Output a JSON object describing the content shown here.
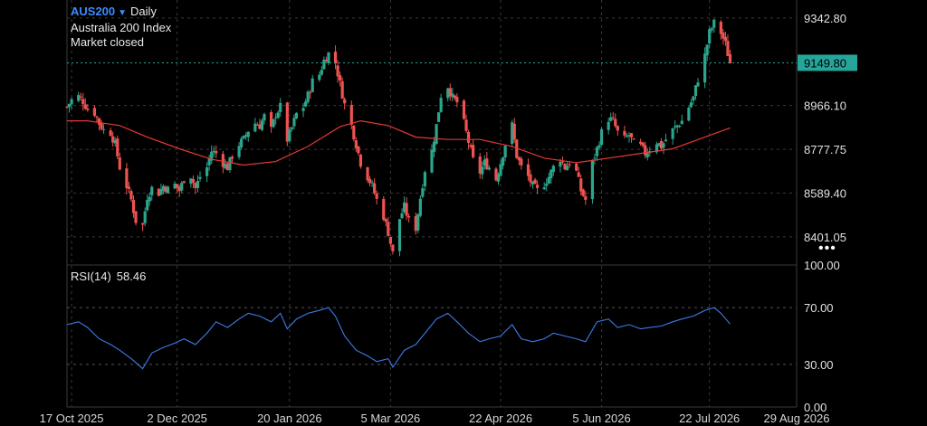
{
  "header": {
    "symbol": "AUS200",
    "timeframe": "Daily",
    "instrument_name": "Australia 200 Index",
    "market_status": "Market closed"
  },
  "more_menu_label": "•••",
  "colors": {
    "background": "#000000",
    "grid": "#3a3a3a",
    "up_candle": "#2ca58d",
    "down_candle": "#ef5350",
    "moving_average": "#e53935",
    "rsi_line": "#3d7be8",
    "price_line": "#26a69a",
    "symbol_accent": "#3d8bff"
  },
  "chart_data": [
    {
      "type": "candlestick",
      "title": "AUS200 Daily",
      "price_axis_ticks": [
        "9342.80",
        "8966.10",
        "8777.75",
        "8589.40",
        "8401.05"
      ],
      "last_price_label": "9149.80",
      "last_price": 9149.8,
      "ylim": [
        8280,
        9420
      ],
      "x_range": [
        "2025-10-15",
        "2026-08-29"
      ],
      "x_tick_labels": [
        {
          "date": "2025-10-17",
          "label": "17 Oct 2025"
        },
        {
          "date": "2025-12-02",
          "label": "2 Dec 2025"
        },
        {
          "date": "2026-01-20",
          "label": "20 Jan 2026"
        },
        {
          "date": "2026-03-05",
          "label": "5 Mar 2026"
        },
        {
          "date": "2026-04-22",
          "label": "22 Apr 2026"
        },
        {
          "date": "2026-06-05",
          "label": "5 Jun 2026"
        },
        {
          "date": "2026-07-22",
          "label": "22 Jul 2026"
        },
        {
          "date": "2026-08-29",
          "label": "29 Aug 2026"
        }
      ],
      "close_path": [
        [
          "2025-10-15",
          8960
        ],
        [
          "2025-10-17",
          8990
        ],
        [
          "2025-10-20",
          9005
        ],
        [
          "2025-10-22",
          8985
        ],
        [
          "2025-10-24",
          8950
        ],
        [
          "2025-10-27",
          8935
        ],
        [
          "2025-10-29",
          8890
        ],
        [
          "2025-10-31",
          8860
        ],
        [
          "2025-11-03",
          8850
        ],
        [
          "2025-11-05",
          8800
        ],
        [
          "2025-11-07",
          8700
        ],
        [
          "2025-11-10",
          8620
        ],
        [
          "2025-11-12",
          8560
        ],
        [
          "2025-11-14",
          8470
        ],
        [
          "2025-11-17",
          8450
        ],
        [
          "2025-11-19",
          8575
        ],
        [
          "2025-11-21",
          8610
        ],
        [
          "2025-11-24",
          8590
        ],
        [
          "2025-11-26",
          8620
        ],
        [
          "2025-11-28",
          8605
        ],
        [
          "2025-12-01",
          8625
        ],
        [
          "2025-12-03",
          8600
        ],
        [
          "2025-12-05",
          8650
        ],
        [
          "2025-12-08",
          8665
        ],
        [
          "2025-12-10",
          8610
        ],
        [
          "2025-12-12",
          8660
        ],
        [
          "2025-12-15",
          8700
        ],
        [
          "2025-12-17",
          8770
        ],
        [
          "2025-12-19",
          8760
        ],
        [
          "2025-12-22",
          8720
        ],
        [
          "2025-12-24",
          8700
        ],
        [
          "2025-12-26",
          8750
        ],
        [
          "2025-12-29",
          8800
        ],
        [
          "2025-12-31",
          8820
        ],
        [
          "2026-01-02",
          8860
        ],
        [
          "2026-01-05",
          8890
        ],
        [
          "2026-01-07",
          8880
        ],
        [
          "2026-01-09",
          8920
        ],
        [
          "2026-01-12",
          8860
        ],
        [
          "2026-01-14",
          8930
        ],
        [
          "2026-01-16",
          8960
        ],
        [
          "2026-01-19",
          8820
        ],
        [
          "2026-01-21",
          8870
        ],
        [
          "2026-01-23",
          8930
        ],
        [
          "2026-01-26",
          8960
        ],
        [
          "2026-01-28",
          9010
        ],
        [
          "2026-01-30",
          9070
        ],
        [
          "2026-02-02",
          9100
        ],
        [
          "2026-02-04",
          9160
        ],
        [
          "2026-02-06",
          9190
        ],
        [
          "2026-02-09",
          9150
        ],
        [
          "2026-02-11",
          9060
        ],
        [
          "2026-02-13",
          8970
        ],
        [
          "2026-02-16",
          8880
        ],
        [
          "2026-02-18",
          8800
        ],
        [
          "2026-02-20",
          8720
        ],
        [
          "2026-02-23",
          8660
        ],
        [
          "2026-02-25",
          8620
        ],
        [
          "2026-02-27",
          8560
        ],
        [
          "2026-03-02",
          8490
        ],
        [
          "2026-03-04",
          8420
        ],
        [
          "2026-03-06",
          8330
        ],
        [
          "2026-03-09",
          8480
        ],
        [
          "2026-03-11",
          8530
        ],
        [
          "2026-03-13",
          8470
        ],
        [
          "2026-03-16",
          8440
        ],
        [
          "2026-03-18",
          8570
        ],
        [
          "2026-03-20",
          8690
        ],
        [
          "2026-03-23",
          8770
        ],
        [
          "2026-03-25",
          8880
        ],
        [
          "2026-03-27",
          9010
        ],
        [
          "2026-03-30",
          9050
        ],
        [
          "2026-04-01",
          9000
        ],
        [
          "2026-04-03",
          8980
        ],
        [
          "2026-04-06",
          8890
        ],
        [
          "2026-04-08",
          8810
        ],
        [
          "2026-04-10",
          8730
        ],
        [
          "2026-04-13",
          8680
        ],
        [
          "2026-04-15",
          8720
        ],
        [
          "2026-04-17",
          8700
        ],
        [
          "2026-04-20",
          8650
        ],
        [
          "2026-04-22",
          8720
        ],
        [
          "2026-04-24",
          8800
        ],
        [
          "2026-04-27",
          8880
        ],
        [
          "2026-04-29",
          8750
        ],
        [
          "2026-05-01",
          8700
        ],
        [
          "2026-05-04",
          8660
        ],
        [
          "2026-05-06",
          8620
        ],
        [
          "2026-05-08",
          8600
        ],
        [
          "2026-05-11",
          8630
        ],
        [
          "2026-05-13",
          8660
        ],
        [
          "2026-05-15",
          8700
        ],
        [
          "2026-05-18",
          8740
        ],
        [
          "2026-05-20",
          8700
        ],
        [
          "2026-05-22",
          8720
        ],
        [
          "2026-05-25",
          8680
        ],
        [
          "2026-05-27",
          8600
        ],
        [
          "2026-05-29",
          8560
        ],
        [
          "2026-06-01",
          8720
        ],
        [
          "2026-06-03",
          8780
        ],
        [
          "2026-06-05",
          8850
        ],
        [
          "2026-06-08",
          8910
        ],
        [
          "2026-06-10",
          8900
        ],
        [
          "2026-06-12",
          8850
        ],
        [
          "2026-06-15",
          8820
        ],
        [
          "2026-06-17",
          8840
        ],
        [
          "2026-06-19",
          8800
        ],
        [
          "2026-06-22",
          8790
        ],
        [
          "2026-06-24",
          8760
        ],
        [
          "2026-06-26",
          8780
        ],
        [
          "2026-06-29",
          8810
        ],
        [
          "2026-07-01",
          8790
        ],
        [
          "2026-07-03",
          8820
        ],
        [
          "2026-07-06",
          8860
        ],
        [
          "2026-07-08",
          8880
        ],
        [
          "2026-07-10",
          8900
        ],
        [
          "2026-07-13",
          8960
        ],
        [
          "2026-07-15",
          9000
        ],
        [
          "2026-07-17",
          9080
        ],
        [
          "2026-07-20",
          9180
        ],
        [
          "2026-07-22",
          9280
        ],
        [
          "2026-07-24",
          9320
        ],
        [
          "2026-07-27",
          9280
        ],
        [
          "2026-07-29",
          9230
        ],
        [
          "2026-07-31",
          9149.8
        ]
      ],
      "moving_average_path": [
        [
          "2025-10-15",
          8900
        ],
        [
          "2025-10-24",
          8900
        ],
        [
          "2025-11-07",
          8880
        ],
        [
          "2025-11-19",
          8830
        ],
        [
          "2025-12-03",
          8780
        ],
        [
          "2025-12-17",
          8735
        ],
        [
          "2025-12-31",
          8710
        ],
        [
          "2026-01-14",
          8725
        ],
        [
          "2026-01-28",
          8790
        ],
        [
          "2026-02-11",
          8875
        ],
        [
          "2026-02-20",
          8900
        ],
        [
          "2026-03-04",
          8880
        ],
        [
          "2026-03-16",
          8830
        ],
        [
          "2026-03-30",
          8820
        ],
        [
          "2026-04-13",
          8820
        ],
        [
          "2026-04-27",
          8790
        ],
        [
          "2026-05-11",
          8740
        ],
        [
          "2026-05-25",
          8720
        ],
        [
          "2026-06-08",
          8740
        ],
        [
          "2026-06-22",
          8760
        ],
        [
          "2026-07-06",
          8780
        ],
        [
          "2026-07-20",
          8830
        ],
        [
          "2026-07-31",
          8870
        ]
      ]
    },
    {
      "type": "line",
      "title": "RSI(14)",
      "last_value_label": "58.46",
      "last_value": 58.46,
      "ylim": [
        0,
        100
      ],
      "tick_labels": [
        "100.00",
        "70.00",
        "30.00",
        "0.00"
      ],
      "levels": [
        70,
        30
      ],
      "points": [
        [
          "2025-10-15",
          58
        ],
        [
          "2025-10-20",
          60
        ],
        [
          "2025-10-24",
          56
        ],
        [
          "2025-10-29",
          48
        ],
        [
          "2025-11-03",
          44
        ],
        [
          "2025-11-07",
          40
        ],
        [
          "2025-11-12",
          34
        ],
        [
          "2025-11-17",
          27
        ],
        [
          "2025-11-21",
          38
        ],
        [
          "2025-11-26",
          42
        ],
        [
          "2025-12-01",
          45
        ],
        [
          "2025-12-05",
          48
        ],
        [
          "2025-12-10",
          44
        ],
        [
          "2025-12-15",
          52
        ],
        [
          "2025-12-19",
          60
        ],
        [
          "2025-12-24",
          56
        ],
        [
          "2025-12-29",
          62
        ],
        [
          "2026-01-02",
          66
        ],
        [
          "2026-01-07",
          64
        ],
        [
          "2026-01-12",
          60
        ],
        [
          "2026-01-16",
          66
        ],
        [
          "2026-01-19",
          55
        ],
        [
          "2026-01-23",
          62
        ],
        [
          "2026-01-28",
          66
        ],
        [
          "2026-02-02",
          68
        ],
        [
          "2026-02-06",
          70
        ],
        [
          "2026-02-09",
          64
        ],
        [
          "2026-02-13",
          50
        ],
        [
          "2026-02-18",
          40
        ],
        [
          "2026-02-23",
          36
        ],
        [
          "2026-02-27",
          32
        ],
        [
          "2026-03-04",
          34
        ],
        [
          "2026-03-06",
          28
        ],
        [
          "2026-03-11",
          40
        ],
        [
          "2026-03-16",
          44
        ],
        [
          "2026-03-20",
          52
        ],
        [
          "2026-03-25",
          62
        ],
        [
          "2026-03-30",
          66
        ],
        [
          "2026-04-03",
          60
        ],
        [
          "2026-04-08",
          52
        ],
        [
          "2026-04-13",
          46
        ],
        [
          "2026-04-17",
          48
        ],
        [
          "2026-04-22",
          50
        ],
        [
          "2026-04-27",
          58
        ],
        [
          "2026-05-01",
          48
        ],
        [
          "2026-05-06",
          46
        ],
        [
          "2026-05-11",
          48
        ],
        [
          "2026-05-15",
          52
        ],
        [
          "2026-05-20",
          50
        ],
        [
          "2026-05-25",
          48
        ],
        [
          "2026-05-29",
          46
        ],
        [
          "2026-06-03",
          60
        ],
        [
          "2026-06-08",
          62
        ],
        [
          "2026-06-12",
          56
        ],
        [
          "2026-06-17",
          58
        ],
        [
          "2026-06-22",
          55
        ],
        [
          "2026-06-26",
          56
        ],
        [
          "2026-07-01",
          57
        ],
        [
          "2026-07-06",
          60
        ],
        [
          "2026-07-10",
          62
        ],
        [
          "2026-07-15",
          64
        ],
        [
          "2026-07-20",
          68
        ],
        [
          "2026-07-24",
          70
        ],
        [
          "2026-07-27",
          66
        ],
        [
          "2026-07-31",
          58.46
        ]
      ]
    }
  ]
}
